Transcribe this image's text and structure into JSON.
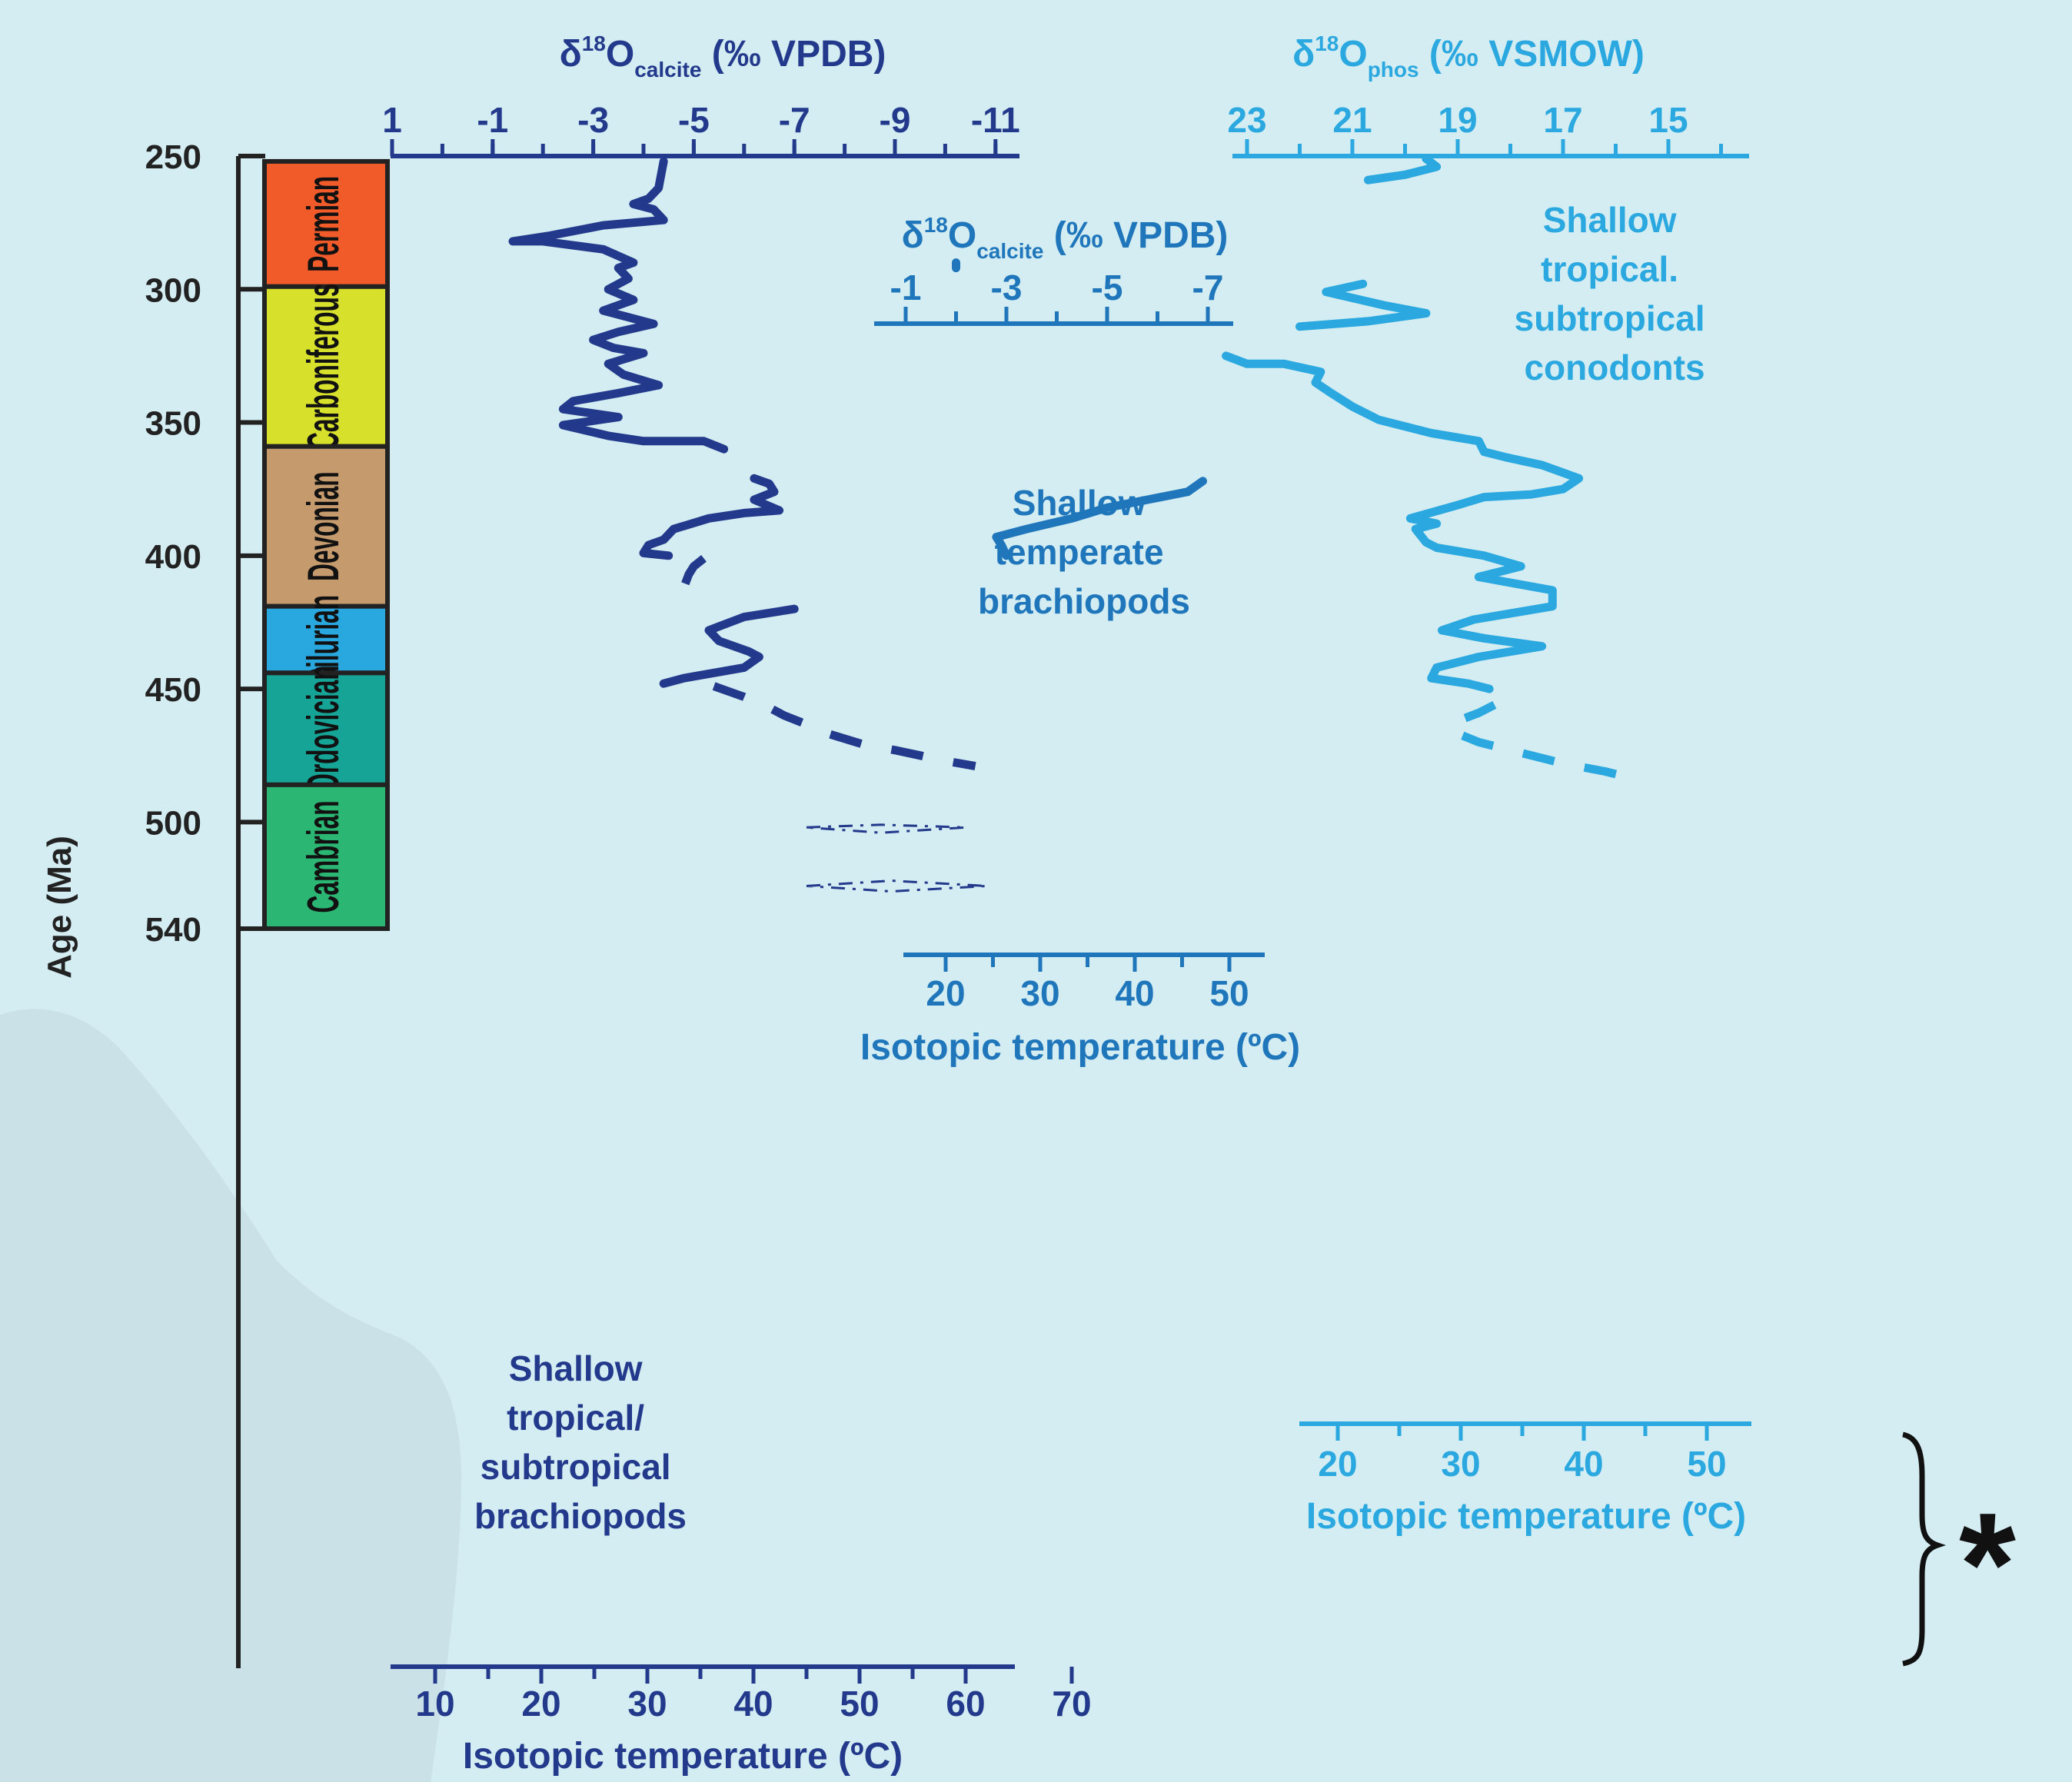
{
  "colors": {
    "background": "#d3edf2",
    "dark_blue": "#233a8c",
    "mid_blue": "#1f76bb",
    "light_blue": "#2aa8df",
    "axis_black": "#222222",
    "periods": {
      "Permian": "#f15a29",
      "Carboniferous": "#d7e02a",
      "Devonian": "#c59a6d",
      "Silurian": "#29a8e0",
      "Ordovician": "#16a497",
      "Cambrian": "#2cb673"
    }
  },
  "age_axis": {
    "label": "Age (Ma)",
    "ticks": [
      "250",
      "300",
      "350",
      "400",
      "450",
      "500",
      "540"
    ],
    "tick_values": [
      250,
      300,
      350,
      400,
      450,
      500,
      540
    ]
  },
  "periods": [
    {
      "name": "Permian",
      "start": 252,
      "end": 299
    },
    {
      "name": "Carboniferous",
      "start": 299,
      "end": 359
    },
    {
      "name": "Devonian",
      "start": 359,
      "end": 419
    },
    {
      "name": "Silurian",
      "start": 419,
      "end": 444
    },
    {
      "name": "Ordovician",
      "start": 444,
      "end": 486
    },
    {
      "name": "Cambrian",
      "start": 486,
      "end": 540
    }
  ],
  "panels": {
    "tropical_brachiopods": {
      "label_lines": [
        "Shallow",
        "tropical/",
        "subtropical",
        "brachiopods"
      ],
      "top_axis": {
        "title_main": "δ",
        "title_sup": "18",
        "title_o": "O",
        "title_sub": "calcite",
        "title_units": " (‰ VPDB)",
        "ticks": [
          "1",
          "-1",
          "-3",
          "-5",
          "-7",
          "-9",
          "-11"
        ],
        "tick_values": [
          1,
          -1,
          -3,
          -5,
          -7,
          -9,
          -11
        ]
      },
      "bottom_axis": {
        "title": "Isotopic temperature (ºC)",
        "ticks": [
          "10",
          "20",
          "30",
          "40",
          "50",
          "60",
          "70"
        ],
        "tick_values": [
          10,
          20,
          30,
          40,
          50,
          60,
          70
        ]
      }
    },
    "temperate_brachiopods": {
      "label_lines": [
        "Shallow",
        "temperate",
        "brachiopods"
      ],
      "top_axis": {
        "title_main": "δ",
        "title_sup": "18",
        "title_o": "O",
        "title_sub": "calcite",
        "title_units": " (‰ VPDB)",
        "ticks": [
          "-1",
          "-3",
          "-5",
          "-7"
        ],
        "tick_values": [
          -1,
          -3,
          -5,
          -7
        ]
      },
      "bottom_axis": {
        "title": "Isotopic temperature (ºC)",
        "ticks": [
          "20",
          "30",
          "40",
          "50"
        ],
        "tick_values": [
          20,
          30,
          40,
          50
        ]
      }
    },
    "conodonts": {
      "label_lines": [
        "Shallow",
        "tropical.",
        "subtropical",
        "conodonts"
      ],
      "top_axis": {
        "title_main": "δ",
        "title_sup": "18",
        "title_o": "O",
        "title_sub": "phos",
        "title_units": " (‰ VSMOW)",
        "ticks": [
          "23",
          "21",
          "19",
          "17",
          "15"
        ],
        "tick_values": [
          23,
          21,
          19,
          17,
          15
        ]
      },
      "bottom_axis": {
        "title": "Isotopic temperature (ºC)",
        "ticks": [
          "20",
          "30",
          "40",
          "50"
        ],
        "tick_values": [
          20,
          30,
          40,
          50
        ]
      }
    }
  },
  "annotation": {
    "symbol": "*"
  },
  "chart_data": {
    "type": "line",
    "y_axis": {
      "label": "Age (Ma)",
      "range": [
        250,
        540
      ],
      "reversed": true
    },
    "series": [
      {
        "panel": "tropical_brachiopods",
        "unit": "δ18O calcite (‰ VPDB)",
        "segments": [
          {
            "style": "solid",
            "points": [
              [
                -4.4,
                252
              ],
              [
                -4.3,
                262
              ],
              [
                -4.1,
                266
              ],
              [
                -3.8,
                268
              ],
              [
                -4.2,
                270
              ],
              [
                -4.4,
                274
              ],
              [
                -3.2,
                276
              ],
              [
                -2.1,
                280
              ],
              [
                -1.4,
                282
              ],
              [
                -2.0,
                282
              ],
              [
                -3.2,
                285
              ],
              [
                -3.8,
                290
              ],
              [
                -3.5,
                292
              ],
              [
                -3.7,
                296
              ],
              [
                -3.3,
                300
              ],
              [
                -3.8,
                304
              ],
              [
                -3.2,
                308
              ],
              [
                -3.6,
                310
              ],
              [
                -4.2,
                313
              ],
              [
                -3.5,
                316
              ],
              [
                -3.0,
                319
              ],
              [
                -3.4,
                322
              ],
              [
                -4.0,
                324
              ],
              [
                -3.3,
                328
              ],
              [
                -3.6,
                332
              ],
              [
                -4.3,
                336
              ],
              [
                -3.5,
                339
              ],
              [
                -2.6,
                342
              ],
              [
                -2.4,
                345
              ],
              [
                -3.5,
                348
              ],
              [
                -2.4,
                351
              ],
              [
                -3.3,
                355
              ],
              [
                -4.0,
                357
              ],
              [
                -5.2,
                357
              ],
              [
                -5.6,
                360
              ]
            ]
          },
          {
            "style": "solid",
            "points": [
              [
                -6.2,
                371
              ],
              [
                -6.5,
                373
              ],
              [
                -6.6,
                376
              ],
              [
                -6.2,
                379
              ],
              [
                -6.7,
                383
              ],
              [
                -6.0,
                384
              ],
              [
                -5.3,
                386
              ],
              [
                -4.6,
                390
              ],
              [
                -4.4,
                394
              ],
              [
                -4.1,
                396
              ],
              [
                -4.0,
                399
              ],
              [
                -4.5,
                400
              ]
            ]
          },
          {
            "style": "dashed",
            "points": [
              [
                -5.2,
                401
              ],
              [
                -5.0,
                404
              ],
              [
                -4.9,
                407
              ],
              [
                -4.8,
                412
              ]
            ]
          },
          {
            "style": "solid",
            "points": [
              [
                -7.0,
                420
              ],
              [
                -6.0,
                423
              ],
              [
                -5.3,
                428
              ],
              [
                -5.5,
                432
              ],
              [
                -6.1,
                436
              ],
              [
                -6.3,
                438
              ],
              [
                -6.0,
                442
              ],
              [
                -4.8,
                446
              ],
              [
                -4.4,
                448
              ]
            ]
          },
          {
            "style": "dashed",
            "points": [
              [
                -5.4,
                449
              ],
              [
                -6.0,
                453
              ],
              [
                -6.5,
                457
              ],
              [
                -6.8,
                460
              ],
              [
                -7.2,
                463
              ],
              [
                -7.7,
                467
              ],
              [
                -8.4,
                471
              ],
              [
                -9.0,
                473
              ],
              [
                -10.0,
                477
              ],
              [
                -10.6,
                479
              ]
            ]
          }
        ]
      },
      {
        "panel": "tropical_brachiopods",
        "unit": "Isotopic temperature (ºC)",
        "segments": [
          {
            "style": "dash-dot-outline",
            "points": [
              [
                45,
                502
              ],
              [
                52,
                501
              ],
              [
                60,
                502
              ],
              [
                52,
                504
              ],
              [
                45,
                502
              ]
            ]
          },
          {
            "style": "dash-dot-outline",
            "points": [
              [
                45,
                524
              ],
              [
                53,
                522
              ],
              [
                62,
                524
              ],
              [
                53,
                526
              ],
              [
                45,
                524
              ]
            ]
          }
        ]
      },
      {
        "panel": "temperate_brachiopods",
        "unit": "δ18O calcite (‰ VPDB)",
        "segments": [
          {
            "style": "solid",
            "points": [
              [
                -2.0,
                290
              ],
              [
                -2.0,
                292
              ]
            ]
          },
          {
            "style": "solid",
            "points": [
              [
                -6.9,
                372
              ],
              [
                -6.6,
                376
              ],
              [
                -5.0,
                382
              ],
              [
                -4.3,
                386
              ],
              [
                -3.4,
                390
              ],
              [
                -2.8,
                393
              ],
              [
                -2.9,
                396
              ],
              [
                -3.0,
                400
              ]
            ]
          }
        ]
      },
      {
        "panel": "conodonts",
        "unit": "δ18O phos (‰ VSMOW)",
        "segments": [
          {
            "style": "solid",
            "points": [
              [
                20.7,
                259
              ],
              [
                20.0,
                257
              ],
              [
                19.4,
                254
              ],
              [
                19.6,
                251
              ]
            ]
          },
          {
            "style": "solid",
            "points": [
              [
                20.8,
                298
              ],
              [
                21.5,
                301
              ],
              [
                20.4,
                306
              ],
              [
                19.6,
                309
              ],
              [
                20.7,
                312
              ],
              [
                22.0,
                314
              ]
            ]
          },
          {
            "style": "solid",
            "points": [
              [
                23.4,
                325
              ],
              [
                23.0,
                328
              ],
              [
                22.3,
                328
              ],
              [
                21.6,
                331
              ],
              [
                21.7,
                335
              ],
              [
                21.4,
                339
              ],
              [
                21.0,
                344
              ],
              [
                20.5,
                349
              ],
              [
                19.5,
                354
              ],
              [
                18.6,
                357
              ],
              [
                18.5,
                361
              ],
              [
                18.1,
                363
              ],
              [
                17.4,
                366
              ],
              [
                16.7,
                371
              ],
              [
                17.0,
                375
              ],
              [
                17.6,
                377
              ],
              [
                18.5,
                378
              ],
              [
                19.0,
                381
              ],
              [
                19.9,
                386
              ],
              [
                19.4,
                388
              ],
              [
                19.8,
                390
              ],
              [
                19.6,
                395
              ],
              [
                19.4,
                397
              ],
              [
                18.5,
                400
              ],
              [
                17.8,
                404
              ],
              [
                18.6,
                408
              ],
              [
                17.2,
                413
              ],
              [
                17.2,
                419
              ],
              [
                18.7,
                424
              ],
              [
                19.3,
                428
              ],
              [
                18.5,
                431
              ],
              [
                17.4,
                434
              ],
              [
                18.6,
                438
              ],
              [
                19.4,
                442
              ],
              [
                19.5,
                446
              ],
              [
                18.8,
                448
              ],
              [
                18.4,
                450
              ]
            ]
          },
          {
            "style": "dashed",
            "points": [
              [
                18.3,
                456
              ],
              [
                18.6,
                459
              ],
              [
                19.0,
                462
              ],
              [
                19.1,
                466
              ],
              [
                18.6,
                470
              ],
              [
                17.8,
                474
              ],
              [
                17.0,
                478
              ],
              [
                16.2,
                481
              ],
              [
                15.6,
                484
              ]
            ]
          }
        ]
      }
    ]
  }
}
